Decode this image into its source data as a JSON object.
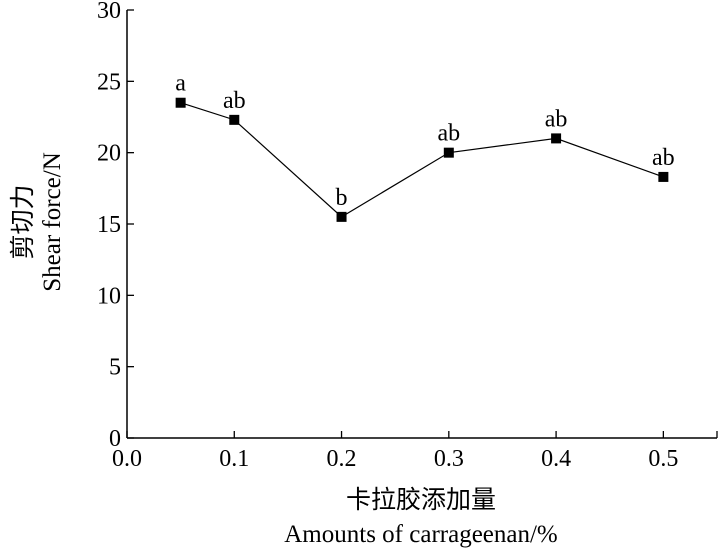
{
  "chart_data": {
    "type": "line",
    "title": "",
    "xlabel_cn": "卡拉胶添加量",
    "xlabel_en": "Amounts of carrageenan/%",
    "ylabel_cn": "剪切力",
    "ylabel_en": "Shear force/N",
    "xlim": [
      0.0,
      0.55
    ],
    "ylim": [
      0,
      30
    ],
    "x_ticks": [
      0.0,
      0.1,
      0.2,
      0.3,
      0.4,
      0.5
    ],
    "x_tick_labels": [
      "0.0",
      "0.1",
      "0.2",
      "0.3",
      "0.4",
      "0.5"
    ],
    "y_ticks": [
      0,
      5,
      10,
      15,
      20,
      25,
      30
    ],
    "y_tick_labels": [
      "0",
      "5",
      "10",
      "15",
      "20",
      "25",
      "30"
    ],
    "grid": false,
    "series": [
      {
        "x": [
          0.05,
          0.1,
          0.2,
          0.3,
          0.4,
          0.5
        ],
        "values": [
          23.5,
          22.3,
          15.5,
          20.0,
          21.0,
          18.3
        ],
        "annotations": [
          "a",
          "ab",
          "b",
          "ab",
          "ab",
          "ab"
        ],
        "marker": "square",
        "color": "#000000"
      }
    ]
  }
}
